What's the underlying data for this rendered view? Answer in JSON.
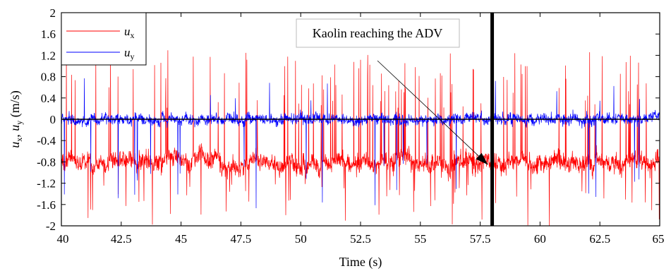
{
  "chart_data": {
    "type": "line",
    "xlabel": "Time (s)",
    "ylabel": {
      "prefix_1": "u",
      "sub_1": "x",
      "separator": ", ",
      "prefix_2": "u",
      "sub_2": "y",
      "unit": " (m/s)"
    },
    "xlim": [
      40,
      65
    ],
    "ylim": [
      -2,
      2
    ],
    "x_ticks": [
      40,
      42.5,
      45,
      47.5,
      50,
      52.5,
      55,
      57.5,
      60,
      62.5,
      65
    ],
    "x_tick_labels": [
      "40",
      "42.5",
      "45",
      "47.5",
      "50",
      "52.5",
      "55",
      "57.5",
      "60",
      "62.5",
      "65"
    ],
    "y_ticks": [
      2,
      1.6,
      1.2,
      0.8,
      0.4,
      0,
      -0.4,
      -0.8,
      -1.2,
      -1.6,
      -2
    ],
    "y_tick_labels": [
      "2",
      "1.6",
      "1.2",
      "0.8",
      "0.4",
      "0",
      "-0.4",
      "-0.8",
      "-1.2",
      "-1.6",
      "-2"
    ],
    "grid": false,
    "legend": "top-left",
    "series": [
      {
        "name": "u",
        "name_sub": "x",
        "color": "#ff0000",
        "mean": -0.8,
        "description": "noisy streamwise velocity with frequent upward spikes up to ~1.3 and downward spikes to -2"
      },
      {
        "name": "u",
        "name_sub": "y",
        "color": "#0000ff",
        "mean": 0.0,
        "description": "noisy transverse velocity around 0 with occasional spikes"
      }
    ],
    "vertical_marker": {
      "x": 58.0,
      "color": "#000000"
    },
    "annotation": {
      "text": "Kaolin reaching the ADV",
      "arrow_target": {
        "x": 58.0,
        "y": -0.8
      }
    }
  }
}
